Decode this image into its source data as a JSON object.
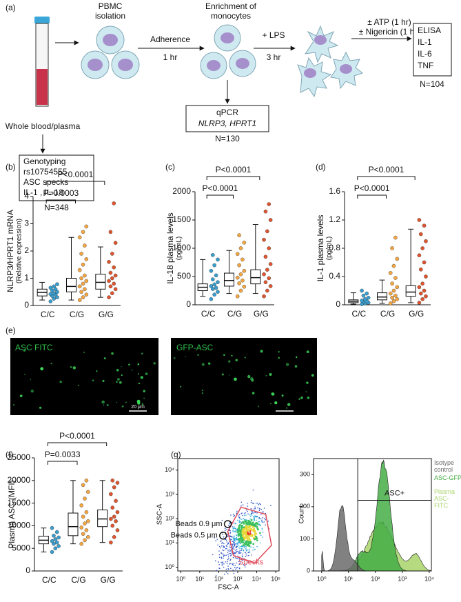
{
  "panel_a": {
    "label": "(a)",
    "sample": "Whole blood/plasma",
    "step1": [
      "PBMC",
      "isolation"
    ],
    "arrow1": [
      "Adherence",
      "1 hr"
    ],
    "step2": [
      "Enrichment of",
      "monocytes"
    ],
    "arrow2": [
      "+ LPS",
      "3 hr"
    ],
    "arrow3": [
      "± ATP (1 hr)",
      "± Nigericin (1 hr)"
    ],
    "readout": [
      "ELISA",
      "IL-1",
      "IL-6",
      "TNF"
    ],
    "readout_n": "N=104",
    "genotyping": [
      "Genotyping",
      "rs10754555",
      "ASC specks",
      "IL-1 , IL-18"
    ],
    "genotyping_n": "N=348",
    "qpcr": [
      "qPCR",
      "NLRP3, HPRT1"
    ],
    "qpcr_n": "N=130"
  },
  "panel_e": {
    "label": "(e)",
    "images": [
      "ASC FITC",
      "GFP-ASC"
    ],
    "scale_bar": "20 μm"
  },
  "chart_data": [
    {
      "type": "box",
      "panel_label": "(b)",
      "ylabel": [
        "NLRP3/HPRT1 mRNA",
        "(Relative expression)"
      ],
      "categories": [
        "C/C",
        "C/G",
        "G/G"
      ],
      "colors": [
        "#3a9fd0",
        "#f5a742",
        "#e0552e"
      ],
      "ylim": [
        0,
        4
      ],
      "yticks": [
        0,
        1,
        2,
        3,
        4
      ],
      "annotations": [
        "P=0.0003",
        "P<0.0001"
      ],
      "boxes": [
        {
          "min": 0.2,
          "q1": 0.35,
          "median": 0.48,
          "q3": 0.6,
          "max": 0.85
        },
        {
          "min": 0.2,
          "q1": 0.5,
          "median": 0.7,
          "q3": 1.0,
          "max": 2.5
        },
        {
          "min": 0.3,
          "q1": 0.6,
          "median": 0.85,
          "q3": 1.15,
          "max": 2.15
        }
      ],
      "points": [
        [
          0.15,
          0.25,
          0.3,
          0.35,
          0.4,
          0.42,
          0.45,
          0.5,
          0.55,
          0.6,
          0.65,
          0.7,
          0.78
        ],
        [
          0.2,
          0.3,
          0.4,
          0.5,
          0.6,
          0.7,
          0.8,
          0.9,
          1.0,
          1.1,
          1.3,
          1.5,
          1.7,
          1.9,
          2.2,
          2.5,
          2.7,
          2.9
        ],
        [
          0.3,
          0.45,
          0.6,
          0.7,
          0.8,
          0.9,
          1.0,
          1.1,
          1.2,
          1.4,
          1.6,
          1.9,
          2.3,
          2.7,
          3.75
        ]
      ]
    },
    {
      "type": "box",
      "panel_label": "(c)",
      "ylabel": [
        "IL-18 plasma levels",
        "(pg/mL)"
      ],
      "categories": [
        "C/C",
        "C/G",
        "G/G"
      ],
      "colors": [
        "#3a9fd0",
        "#f5a742",
        "#e0552e"
      ],
      "ylim": [
        0,
        2000
      ],
      "yticks": [
        0,
        500,
        1000,
        1500,
        2000
      ],
      "annotations": [
        "P<0.0001",
        "P<0.0001"
      ],
      "boxes": [
        {
          "min": 150,
          "q1": 250,
          "median": 310,
          "q3": 370,
          "max": 800
        },
        {
          "min": 200,
          "q1": 330,
          "median": 430,
          "q3": 560,
          "max": 960
        },
        {
          "min": 200,
          "q1": 370,
          "median": 480,
          "q3": 620,
          "max": 1420
        }
      ],
      "points": [
        [
          100,
          180,
          230,
          280,
          300,
          330,
          360,
          400,
          450,
          520,
          600,
          700,
          800,
          880
        ],
        [
          150,
          250,
          320,
          380,
          430,
          480,
          540,
          600,
          700,
          800,
          900,
          1000,
          1100,
          1230
        ],
        [
          150,
          250,
          330,
          400,
          470,
          540,
          620,
          720,
          850,
          1000,
          1150,
          1300,
          1500,
          1650,
          1780
        ]
      ]
    },
    {
      "type": "box",
      "panel_label": "(d)",
      "ylabel": [
        "IL-1  plasma levels",
        "(pg/mL)"
      ],
      "categories": [
        "C/C",
        "C/G",
        "G/G"
      ],
      "colors": [
        "#3a9fd0",
        "#f5a742",
        "#e0552e"
      ],
      "ylim": [
        0,
        1.6
      ],
      "yticks": [
        0,
        0.4,
        0.8,
        1.2,
        1.6
      ],
      "annotations": [
        "P<0.0001",
        "P<0.0001"
      ],
      "boxes": [
        {
          "min": 0.01,
          "q1": 0.03,
          "median": 0.05,
          "q3": 0.07,
          "max": 0.17
        },
        {
          "min": 0.02,
          "q1": 0.07,
          "median": 0.11,
          "q3": 0.17,
          "max": 0.35
        },
        {
          "min": 0.03,
          "q1": 0.12,
          "median": 0.18,
          "q3": 0.27,
          "max": 1.07
        }
      ],
      "points": [
        [
          0.01,
          0.02,
          0.03,
          0.04,
          0.05,
          0.06,
          0.08,
          0.1,
          0.13,
          0.16,
          0.2
        ],
        [
          0.02,
          0.05,
          0.08,
          0.1,
          0.13,
          0.16,
          0.2,
          0.25,
          0.3,
          0.38,
          0.45,
          0.55,
          0.65,
          0.8,
          0.95
        ],
        [
          0.03,
          0.08,
          0.12,
          0.16,
          0.2,
          0.25,
          0.3,
          0.4,
          0.5,
          0.6,
          0.7,
          0.8,
          0.9,
          1.0,
          1.12,
          1.2
        ]
      ]
    },
    {
      "type": "box",
      "panel_label": "(f)",
      "ylabel": [
        "Plasma ASC (MFI)"
      ],
      "categories": [
        "C/C",
        "C/G",
        "G/G"
      ],
      "colors": [
        "#3a9fd0",
        "#f5a742",
        "#e0552e"
      ],
      "ylim": [
        0,
        25000
      ],
      "yticks": [
        0,
        5000,
        10000,
        15000,
        20000,
        25000
      ],
      "annotations": [
        "P=0.0033",
        "P<0.0001"
      ],
      "boxes": [
        {
          "min": 4200,
          "q1": 6000,
          "median": 6800,
          "q3": 7700,
          "max": 9500
        },
        {
          "min": 6000,
          "q1": 7800,
          "median": 9800,
          "q3": 12800,
          "max": 20000
        },
        {
          "min": 6300,
          "q1": 9800,
          "median": 11500,
          "q3": 13500,
          "max": 20000
        }
      ],
      "points": [
        [
          4200,
          5000,
          5500,
          6000,
          6300,
          6600,
          7000,
          7400,
          7800,
          8600,
          9500
        ],
        [
          6000,
          6800,
          7500,
          8200,
          9000,
          9600,
          10500,
          11000,
          12000,
          13000,
          14500,
          16000,
          17500,
          19000,
          20000
        ],
        [
          6300,
          7500,
          9000,
          10000,
          11000,
          11500,
          12000,
          13000,
          14000,
          15500,
          17000,
          18500,
          19500,
          20000
        ]
      ]
    },
    {
      "type": "flow-scatter",
      "panel_label": "(g)",
      "xlabel": "FSC-A",
      "ylabel": "SSC-A",
      "log": true,
      "xlim": [
        0.7,
        150000
      ],
      "ylim": [
        0.7,
        30000
      ],
      "xticks": [
        {
          "value": 1,
          "label": "10⁰"
        },
        {
          "value": 10,
          "label": "10¹"
        },
        {
          "value": 100,
          "label": "10²"
        },
        {
          "value": 1000,
          "label": "10³"
        },
        {
          "value": 10000,
          "label": "10⁴"
        },
        {
          "value": 100000,
          "label": "10⁵"
        }
      ],
      "yticks": [
        {
          "value": 1,
          "label": "10⁰"
        },
        {
          "value": 10,
          "label": "10¹"
        },
        {
          "value": 100,
          "label": "10²"
        },
        {
          "value": 1000,
          "label": "10³"
        },
        {
          "value": 10000,
          "label": "10⁴"
        }
      ],
      "annotations": [
        "Beads 0.9 μm",
        "Beads 0.5 μm",
        "Specks"
      ]
    },
    {
      "type": "histogram-overlay",
      "ylabel": "Count",
      "log": true,
      "xlim": [
        0.5,
        12000
      ],
      "ylim": [
        0,
        350
      ],
      "xticks": [
        {
          "value": 1,
          "label": "10⁰"
        },
        {
          "value": 10,
          "label": "10¹"
        },
        {
          "value": 100,
          "label": "10²"
        },
        {
          "value": 1000,
          "label": "10³"
        },
        {
          "value": 10000,
          "label": "10⁴"
        }
      ],
      "yticks": [
        0,
        100,
        200,
        300
      ],
      "gate_label": "ASC+",
      "series": [
        {
          "name": "Isotype control",
          "color": "#6b6b6b"
        },
        {
          "name": "ASC-GFP",
          "color": "#45ad45"
        },
        {
          "name": "Plasma ASC-FITC",
          "color": "#a9d46a"
        }
      ]
    }
  ]
}
